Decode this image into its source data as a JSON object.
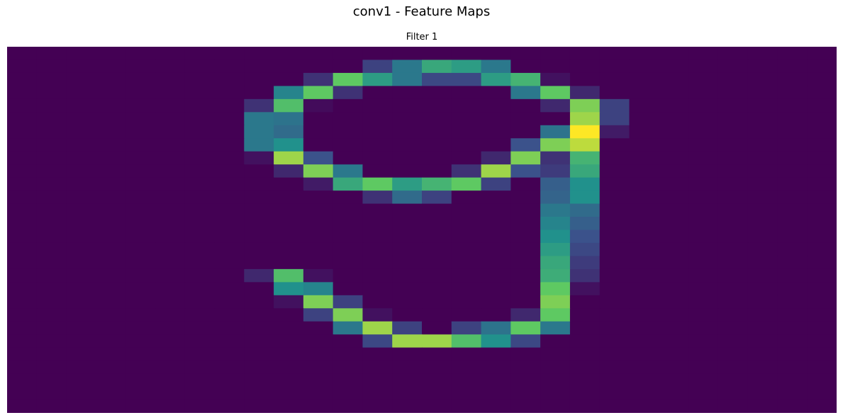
{
  "figure": {
    "title": "conv1 - Feature Maps"
  },
  "chart_data": {
    "type": "heatmap",
    "title": "Filter 1",
    "colormap": "viridis",
    "axes_visible": false,
    "value_range": [
      0,
      1
    ],
    "rows": 28,
    "cols": 28,
    "values": [
      [
        0,
        0,
        0,
        0,
        0,
        0,
        0,
        0,
        0,
        0,
        0,
        0,
        0,
        0,
        0,
        0,
        0,
        0,
        0,
        0,
        0,
        0,
        0,
        0,
        0,
        0,
        0,
        0
      ],
      [
        0,
        0,
        0,
        0,
        0,
        0,
        0,
        0,
        0,
        0,
        0,
        0,
        0.2,
        0.4,
        0.6,
        0.55,
        0.4,
        0,
        0,
        0,
        0,
        0,
        0,
        0,
        0,
        0,
        0,
        0
      ],
      [
        0,
        0,
        0,
        0,
        0,
        0,
        0,
        0,
        0,
        0,
        0.15,
        0.75,
        0.55,
        0.4,
        0.22,
        0.22,
        0.55,
        0.65,
        0.05,
        0,
        0,
        0,
        0,
        0,
        0,
        0,
        0,
        0
      ],
      [
        0,
        0,
        0,
        0,
        0,
        0,
        0,
        0,
        0,
        0.45,
        0.75,
        0.15,
        0,
        0,
        0,
        0,
        0,
        0.4,
        0.75,
        0.12,
        0,
        0,
        0,
        0,
        0,
        0,
        0,
        0
      ],
      [
        0,
        0,
        0,
        0,
        0,
        0,
        0,
        0,
        0.15,
        0.7,
        0.03,
        0,
        0,
        0,
        0,
        0,
        0,
        0,
        0.12,
        0.8,
        0.2,
        0,
        0,
        0,
        0,
        0,
        0,
        0
      ],
      [
        0,
        0,
        0,
        0,
        0,
        0,
        0,
        0,
        0.4,
        0.38,
        0,
        0,
        0,
        0,
        0,
        0,
        0,
        0,
        0,
        0.85,
        0.2,
        0,
        0,
        0,
        0,
        0,
        0,
        0
      ],
      [
        0,
        0,
        0,
        0,
        0,
        0,
        0,
        0,
        0.4,
        0.35,
        0,
        0,
        0,
        0,
        0,
        0,
        0,
        0,
        0.38,
        1,
        0.08,
        0,
        0,
        0,
        0,
        0,
        0,
        0
      ],
      [
        0,
        0,
        0,
        0,
        0,
        0,
        0,
        0,
        0.4,
        0.5,
        0,
        0,
        0,
        0,
        0,
        0,
        0,
        0.25,
        0.8,
        0.9,
        0,
        0,
        0,
        0,
        0,
        0,
        0,
        0
      ],
      [
        0,
        0,
        0,
        0,
        0,
        0,
        0,
        0,
        0.05,
        0.85,
        0.25,
        0,
        0,
        0,
        0,
        0,
        0.12,
        0.8,
        0.15,
        0.65,
        0,
        0,
        0,
        0,
        0,
        0,
        0,
        0
      ],
      [
        0,
        0,
        0,
        0,
        0,
        0,
        0,
        0,
        0,
        0.12,
        0.8,
        0.4,
        0,
        0,
        0,
        0.15,
        0.85,
        0.25,
        0.18,
        0.6,
        0,
        0,
        0,
        0,
        0,
        0,
        0,
        0
      ],
      [
        0,
        0,
        0,
        0,
        0,
        0,
        0,
        0,
        0,
        0,
        0.08,
        0.6,
        0.75,
        0.55,
        0.65,
        0.75,
        0.2,
        0,
        0.3,
        0.5,
        0,
        0,
        0,
        0,
        0,
        0,
        0,
        0
      ],
      [
        0,
        0,
        0,
        0,
        0,
        0,
        0,
        0,
        0,
        0,
        0,
        0,
        0.15,
        0.35,
        0.2,
        0,
        0,
        0,
        0.32,
        0.5,
        0,
        0,
        0,
        0,
        0,
        0,
        0,
        0
      ],
      [
        0,
        0,
        0,
        0,
        0,
        0,
        0,
        0,
        0,
        0,
        0,
        0,
        0,
        0,
        0,
        0,
        0,
        0,
        0.4,
        0.35,
        0,
        0,
        0,
        0,
        0,
        0,
        0,
        0
      ],
      [
        0,
        0,
        0,
        0,
        0,
        0,
        0,
        0,
        0,
        0,
        0,
        0,
        0,
        0,
        0,
        0,
        0,
        0,
        0.45,
        0.3,
        0,
        0,
        0,
        0,
        0,
        0,
        0,
        0
      ],
      [
        0,
        0,
        0,
        0,
        0,
        0,
        0,
        0,
        0,
        0,
        0,
        0,
        0,
        0,
        0,
        0,
        0,
        0,
        0.5,
        0.25,
        0,
        0,
        0,
        0,
        0,
        0,
        0,
        0
      ],
      [
        0,
        0,
        0,
        0,
        0,
        0,
        0,
        0,
        0,
        0,
        0,
        0,
        0,
        0,
        0,
        0,
        0,
        0,
        0.55,
        0.22,
        0,
        0,
        0,
        0,
        0,
        0,
        0,
        0
      ],
      [
        0,
        0,
        0,
        0,
        0,
        0,
        0,
        0,
        0,
        0,
        0,
        0,
        0,
        0,
        0,
        0,
        0,
        0,
        0.6,
        0.18,
        0,
        0,
        0,
        0,
        0,
        0,
        0,
        0
      ],
      [
        0,
        0,
        0,
        0,
        0,
        0,
        0,
        0,
        0.12,
        0.7,
        0.05,
        0,
        0,
        0,
        0,
        0,
        0,
        0,
        0.62,
        0.15,
        0,
        0,
        0,
        0,
        0,
        0,
        0,
        0
      ],
      [
        0,
        0,
        0,
        0,
        0,
        0,
        0,
        0,
        0,
        0.5,
        0.45,
        0,
        0,
        0,
        0,
        0,
        0,
        0,
        0.75,
        0.05,
        0,
        0,
        0,
        0,
        0,
        0,
        0,
        0
      ],
      [
        0,
        0,
        0,
        0,
        0,
        0,
        0,
        0,
        0,
        0.05,
        0.8,
        0.2,
        0,
        0,
        0,
        0,
        0,
        0,
        0.8,
        0,
        0,
        0,
        0,
        0,
        0,
        0,
        0,
        0
      ],
      [
        0,
        0,
        0,
        0,
        0,
        0,
        0,
        0,
        0,
        0,
        0.2,
        0.8,
        0.05,
        0,
        0,
        0,
        0,
        0.12,
        0.75,
        0,
        0,
        0,
        0,
        0,
        0,
        0,
        0,
        0
      ],
      [
        0,
        0,
        0,
        0,
        0,
        0,
        0,
        0,
        0,
        0,
        0,
        0.4,
        0.85,
        0.2,
        0,
        0.2,
        0.38,
        0.75,
        0.4,
        0,
        0,
        0,
        0,
        0,
        0,
        0,
        0,
        0
      ],
      [
        0,
        0,
        0,
        0,
        0,
        0,
        0,
        0,
        0,
        0,
        0,
        0,
        0.22,
        0.85,
        0.85,
        0.7,
        0.5,
        0.22,
        0,
        0,
        0,
        0,
        0,
        0,
        0,
        0,
        0,
        0
      ],
      [
        0,
        0,
        0,
        0,
        0,
        0,
        0,
        0,
        0,
        0,
        0,
        0,
        0,
        0,
        0,
        0,
        0,
        0,
        0,
        0,
        0,
        0,
        0,
        0,
        0,
        0,
        0,
        0
      ],
      [
        0,
        0,
        0,
        0,
        0,
        0,
        0,
        0,
        0,
        0,
        0,
        0,
        0,
        0,
        0,
        0,
        0,
        0,
        0,
        0,
        0,
        0,
        0,
        0,
        0,
        0,
        0,
        0
      ],
      [
        0,
        0,
        0,
        0,
        0,
        0,
        0,
        0,
        0,
        0,
        0,
        0,
        0,
        0,
        0,
        0,
        0,
        0,
        0,
        0,
        0,
        0,
        0,
        0,
        0,
        0,
        0,
        0
      ],
      [
        0,
        0,
        0,
        0,
        0,
        0,
        0,
        0,
        0,
        0,
        0,
        0,
        0,
        0,
        0,
        0,
        0,
        0,
        0,
        0,
        0,
        0,
        0,
        0,
        0,
        0,
        0,
        0
      ],
      [
        0,
        0,
        0,
        0,
        0,
        0,
        0,
        0,
        0,
        0,
        0,
        0,
        0,
        0,
        0,
        0,
        0,
        0,
        0,
        0,
        0,
        0,
        0,
        0,
        0,
        0,
        0,
        0
      ]
    ]
  }
}
